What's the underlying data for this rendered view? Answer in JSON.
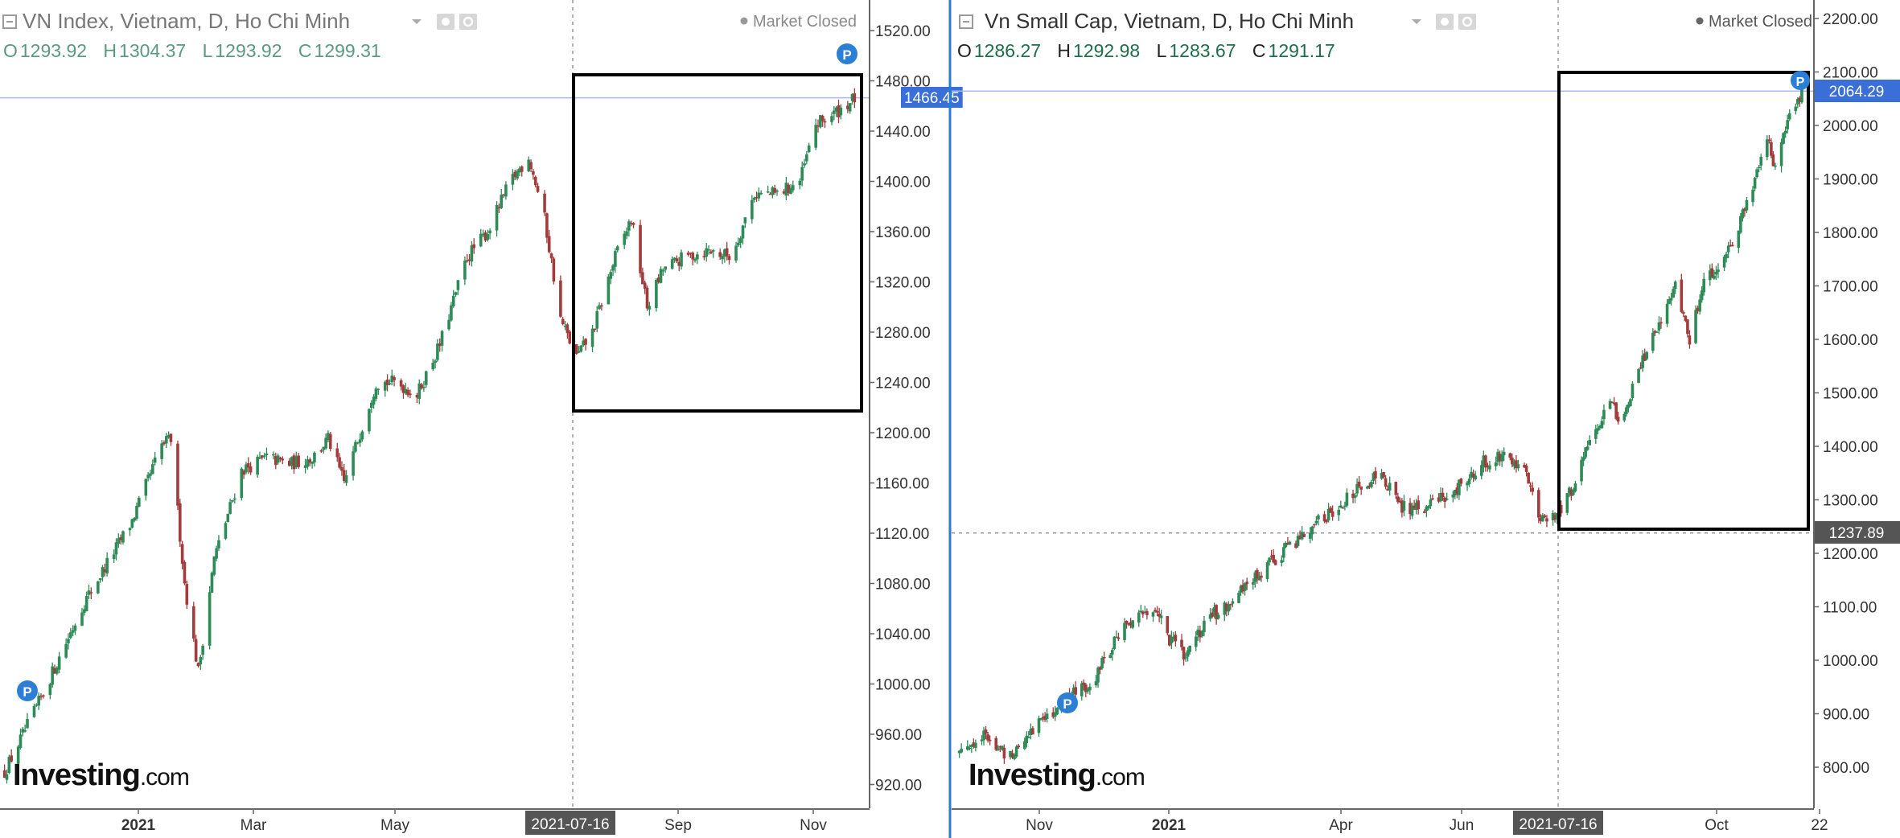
{
  "colors": {
    "up": "#2e8b57",
    "down": "#a23b3b",
    "axis_text": "#333333",
    "header_text": "#666666",
    "ohlc_value": "#2e7d5b",
    "price_tag": "#3a6fd8",
    "cross_tag": "#555555",
    "hline": "#aab8f0",
    "divider": "#2a7bd4",
    "box": "#000000",
    "p_marker": "#2d7fd6"
  },
  "panels": [
    {
      "title": "VN Index, Vietnam, D, Ho Chi Minh",
      "market_status": "Market Closed",
      "ohlc": {
        "o_label": "O",
        "o_value": "1293.92",
        "h_label": "H",
        "h_value": "1304.37",
        "l_label": "L",
        "l_value": "1293.92",
        "c_label": "C",
        "c_value": "1299.31"
      },
      "price_tag": "1466.45",
      "cross_tag": "",
      "date_tag": "2021-07-16",
      "watermark_bold": "Investing",
      "watermark_light": ".com",
      "marker_label": "P"
    },
    {
      "title": "Vn Small Cap, Vietnam, D, Ho Chi Minh",
      "market_status": "Market Closed",
      "ohlc": {
        "o_label": "O",
        "o_value": "1286.27",
        "h_label": "H",
        "h_value": "1292.98",
        "l_label": "L",
        "l_value": "1283.67",
        "c_label": "C",
        "c_value": "1291.17"
      },
      "price_tag": "2064.29",
      "cross_tag": "1237.89",
      "date_tag": "2021-07-16",
      "watermark_bold": "Investing",
      "watermark_light": ".com",
      "marker_label": "P"
    }
  ],
  "chart_data": [
    {
      "type": "candlestick",
      "title": "VN Index, Vietnam, D, Ho Chi Minh",
      "ylim": [
        900,
        1530
      ],
      "y_ticks": [
        "920.00",
        "960.00",
        "1000.00",
        "1040.00",
        "1080.00",
        "1120.00",
        "1160.00",
        "1200.00",
        "1240.00",
        "1280.00",
        "1320.00",
        "1360.00",
        "1400.00",
        "1440.00",
        "1480.00",
        "1520.00"
      ],
      "x_ticks": [
        "2021",
        "Mar",
        "May",
        "Sep",
        "Nov"
      ],
      "current_price": 1466.45,
      "highlight_date": "2021-07-16",
      "close_path": [
        {
          "date": "2020-11-10",
          "close": 930
        },
        {
          "date": "2020-11-25",
          "close": 985
        },
        {
          "date": "2020-12-15",
          "close": 1065
        },
        {
          "date": "2021-01-05",
          "close": 1130
        },
        {
          "date": "2021-01-18",
          "close": 1190
        },
        {
          "date": "2021-01-22",
          "close": 1195
        },
        {
          "date": "2021-01-28",
          "close": 1080
        },
        {
          "date": "2021-02-03",
          "close": 1010
        },
        {
          "date": "2021-02-10",
          "close": 1100
        },
        {
          "date": "2021-02-22",
          "close": 1170
        },
        {
          "date": "2021-03-05",
          "close": 1180
        },
        {
          "date": "2021-03-15",
          "close": 1175
        },
        {
          "date": "2021-03-25",
          "close": 1180
        },
        {
          "date": "2021-04-01",
          "close": 1195
        },
        {
          "date": "2021-04-08",
          "close": 1160
        },
        {
          "date": "2021-04-15",
          "close": 1200
        },
        {
          "date": "2021-04-22",
          "close": 1240
        },
        {
          "date": "2021-05-01",
          "close": 1240
        },
        {
          "date": "2021-05-10",
          "close": 1230
        },
        {
          "date": "2021-05-20",
          "close": 1270
        },
        {
          "date": "2021-06-01",
          "close": 1340
        },
        {
          "date": "2021-06-10",
          "close": 1360
        },
        {
          "date": "2021-06-20",
          "close": 1400
        },
        {
          "date": "2021-06-28",
          "close": 1420
        },
        {
          "date": "2021-07-05",
          "close": 1370
        },
        {
          "date": "2021-07-12",
          "close": 1290
        },
        {
          "date": "2021-07-19",
          "close": 1260
        },
        {
          "date": "2021-07-26",
          "close": 1280
        },
        {
          "date": "2021-08-05",
          "close": 1340
        },
        {
          "date": "2021-08-12",
          "close": 1370
        },
        {
          "date": "2021-08-19",
          "close": 1300
        },
        {
          "date": "2021-08-26",
          "close": 1330
        },
        {
          "date": "2021-09-05",
          "close": 1340
        },
        {
          "date": "2021-09-15",
          "close": 1345
        },
        {
          "date": "2021-09-25",
          "close": 1340
        },
        {
          "date": "2021-10-05",
          "close": 1390
        },
        {
          "date": "2021-10-15",
          "close": 1390
        },
        {
          "date": "2021-10-25",
          "close": 1400
        },
        {
          "date": "2021-11-01",
          "close": 1445
        },
        {
          "date": "2021-11-10",
          "close": 1455
        },
        {
          "date": "2021-11-18",
          "close": 1466
        }
      ]
    },
    {
      "type": "candlestick",
      "title": "Vn Small Cap, Vietnam, D, Ho Chi Minh",
      "ylim": [
        740,
        2230
      ],
      "y_ticks": [
        "800.00",
        "900.00",
        "1000.00",
        "1100.00",
        "1200.00",
        "1300.00",
        "1400.00",
        "1500.00",
        "1600.00",
        "1700.00",
        "1800.00",
        "1900.00",
        "2000.00",
        "2100.00",
        "2200.00"
      ],
      "x_ticks": [
        "Nov",
        "2021",
        "Apr",
        "Jun",
        "Oct",
        "22"
      ],
      "current_price": 2064.29,
      "crosshair_price": 1237.89,
      "highlight_date": "2021-07-16",
      "close_path": [
        {
          "date": "2020-10-01",
          "close": 830
        },
        {
          "date": "2020-10-12",
          "close": 860
        },
        {
          "date": "2020-10-25",
          "close": 820
        },
        {
          "date": "2020-11-05",
          "close": 870
        },
        {
          "date": "2020-11-20",
          "close": 920
        },
        {
          "date": "2020-12-05",
          "close": 960
        },
        {
          "date": "2020-12-20",
          "close": 1060
        },
        {
          "date": "2021-01-05",
          "close": 1100
        },
        {
          "date": "2021-01-12",
          "close": 1040
        },
        {
          "date": "2021-01-20",
          "close": 1010
        },
        {
          "date": "2021-02-01",
          "close": 1080
        },
        {
          "date": "2021-02-20",
          "close": 1140
        },
        {
          "date": "2021-03-05",
          "close": 1190
        },
        {
          "date": "2021-03-20",
          "close": 1240
        },
        {
          "date": "2021-04-05",
          "close": 1290
        },
        {
          "date": "2021-04-15",
          "close": 1320
        },
        {
          "date": "2021-04-25",
          "close": 1350
        },
        {
          "date": "2021-05-05",
          "close": 1290
        },
        {
          "date": "2021-05-15",
          "close": 1280
        },
        {
          "date": "2021-05-25",
          "close": 1300
        },
        {
          "date": "2021-06-05",
          "close": 1330
        },
        {
          "date": "2021-06-15",
          "close": 1370
        },
        {
          "date": "2021-06-25",
          "close": 1390
        },
        {
          "date": "2021-07-05",
          "close": 1360
        },
        {
          "date": "2021-07-12",
          "close": 1260
        },
        {
          "date": "2021-07-19",
          "close": 1270
        },
        {
          "date": "2021-07-26",
          "close": 1300
        },
        {
          "date": "2021-08-05",
          "close": 1400
        },
        {
          "date": "2021-08-15",
          "close": 1480
        },
        {
          "date": "2021-08-22",
          "close": 1450
        },
        {
          "date": "2021-09-01",
          "close": 1560
        },
        {
          "date": "2021-09-10",
          "close": 1640
        },
        {
          "date": "2021-09-17",
          "close": 1700
        },
        {
          "date": "2021-09-24",
          "close": 1600
        },
        {
          "date": "2021-10-01",
          "close": 1700
        },
        {
          "date": "2021-10-12",
          "close": 1760
        },
        {
          "date": "2021-10-22",
          "close": 1850
        },
        {
          "date": "2021-11-01",
          "close": 1980
        },
        {
          "date": "2021-11-05",
          "close": 1920
        },
        {
          "date": "2021-11-12",
          "close": 2030
        },
        {
          "date": "2021-11-18",
          "close": 2064
        }
      ]
    }
  ]
}
